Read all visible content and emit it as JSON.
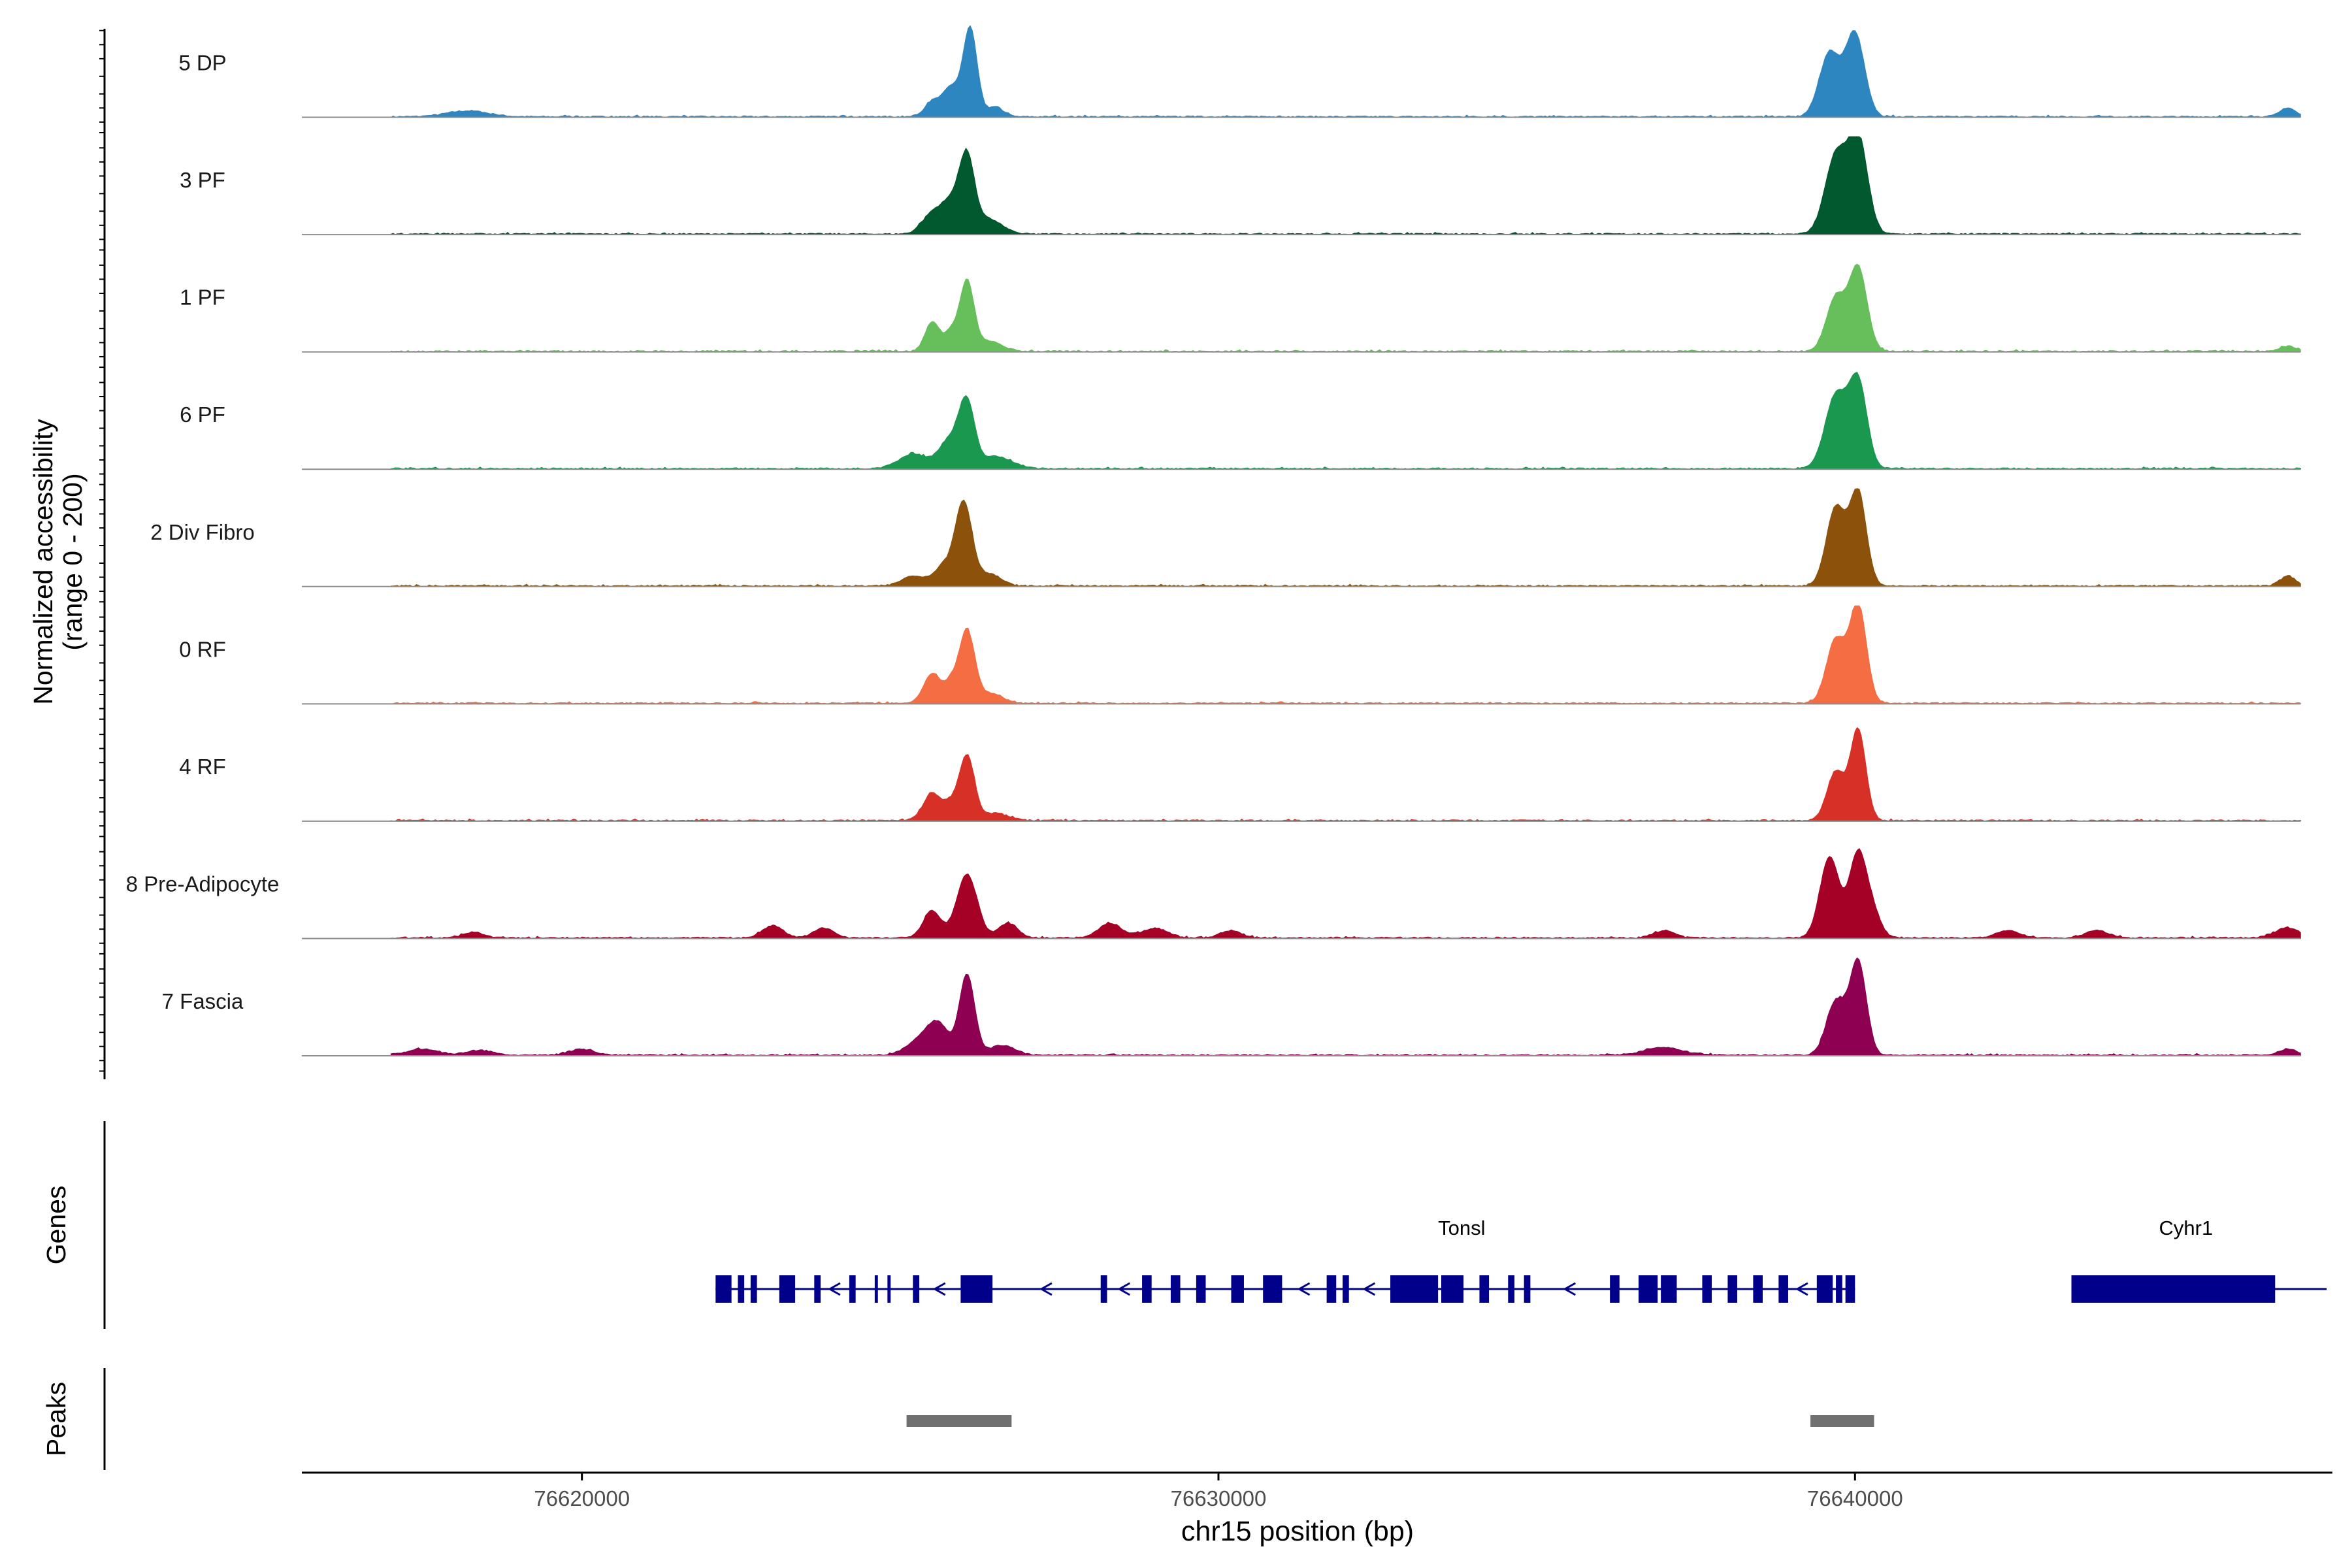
{
  "chart_data": {
    "type": "area",
    "title": "",
    "region": {
      "chrom": "chr15",
      "start": 76615600,
      "end": 76647500
    },
    "xlabel": "chr15 position (bp)",
    "ylabel": "Normalized accessibility",
    "ylabel_sub": "(range 0 - 200)",
    "ylim": [
      0,
      200
    ],
    "xticks": [
      {
        "value": 76620000,
        "label": "76620000"
      },
      {
        "value": 76630000,
        "label": "76630000"
      },
      {
        "value": 76640000,
        "label": "76640000"
      }
    ],
    "series": [
      {
        "name": "5 DP",
        "color": "#2e86c1",
        "peaks": [
          [
            76618200,
            12,
            320
          ],
          [
            76625500,
            30,
            120
          ],
          [
            76625800,
            60,
            130
          ],
          [
            76626100,
            180,
            110
          ],
          [
            76626500,
            20,
            120
          ],
          [
            76639600,
            130,
            160
          ],
          [
            76640000,
            170,
            150
          ],
          [
            76646800,
            18,
            120
          ]
        ]
      },
      {
        "name": "3 PF",
        "color": "#00592f",
        "peaks": [
          [
            76625500,
            40,
            160
          ],
          [
            76625800,
            60,
            150
          ],
          [
            76626050,
            150,
            120
          ],
          [
            76626400,
            30,
            200
          ],
          [
            76639700,
            160,
            170
          ],
          [
            76640050,
            195,
            150
          ]
        ]
      },
      {
        "name": "1 PF",
        "color": "#66bf5b",
        "peaks": [
          [
            76625500,
            60,
            110
          ],
          [
            76625800,
            40,
            110
          ],
          [
            76626050,
            140,
            110
          ],
          [
            76626400,
            20,
            200
          ],
          [
            76639700,
            110,
            150
          ],
          [
            76640050,
            170,
            140
          ],
          [
            76646800,
            10,
            120
          ]
        ]
      },
      {
        "name": "6 PF",
        "color": "#1a9850",
        "peaks": [
          [
            76625200,
            30,
            220
          ],
          [
            76625800,
            60,
            180
          ],
          [
            76626050,
            120,
            120
          ],
          [
            76626500,
            25,
            250
          ],
          [
            76639700,
            150,
            170
          ],
          [
            76640050,
            175,
            140
          ]
        ]
      },
      {
        "name": "2 Div Fibro",
        "color": "#8c510a",
        "peaks": [
          [
            76625200,
            20,
            180
          ],
          [
            76625700,
            40,
            170
          ],
          [
            76626000,
            165,
            130
          ],
          [
            76626400,
            25,
            180
          ],
          [
            76639700,
            160,
            150
          ],
          [
            76640050,
            190,
            130
          ],
          [
            76646800,
            20,
            120
          ]
        ]
      },
      {
        "name": "0 RF",
        "color": "#f46d43",
        "peaks": [
          [
            76625500,
            60,
            130
          ],
          [
            76625800,
            40,
            110
          ],
          [
            76626050,
            145,
            120
          ],
          [
            76626400,
            20,
            200
          ],
          [
            76639700,
            130,
            150
          ],
          [
            76640050,
            200,
            130
          ]
        ]
      },
      {
        "name": "4 RF",
        "color": "#d73027",
        "peaks": [
          [
            76625500,
            55,
            140
          ],
          [
            76625800,
            30,
            120
          ],
          [
            76626050,
            130,
            120
          ],
          [
            76626500,
            15,
            200
          ],
          [
            76639700,
            100,
            140
          ],
          [
            76640050,
            185,
            120
          ]
        ]
      },
      {
        "name": "8 Pre-Adipocyte",
        "color": "#a50026",
        "peaks": [
          [
            76618300,
            12,
            160
          ],
          [
            76623000,
            25,
            160
          ],
          [
            76623800,
            20,
            160
          ],
          [
            76625500,
            55,
            140
          ],
          [
            76626050,
            130,
            160
          ],
          [
            76626700,
            30,
            150
          ],
          [
            76628300,
            30,
            180
          ],
          [
            76629000,
            20,
            200
          ],
          [
            76630200,
            15,
            160
          ],
          [
            76637000,
            15,
            160
          ],
          [
            76639600,
            165,
            150
          ],
          [
            76640050,
            175,
            140
          ],
          [
            76640300,
            40,
            120
          ],
          [
            76642400,
            15,
            180
          ],
          [
            76643800,
            15,
            180
          ],
          [
            76646800,
            20,
            200
          ]
        ]
      },
      {
        "name": "7 Fascia",
        "color": "#8e0152",
        "peaks": [
          [
            76617500,
            12,
            250
          ],
          [
            76618400,
            10,
            200
          ],
          [
            76620000,
            12,
            200
          ],
          [
            76625300,
            30,
            200
          ],
          [
            76625600,
            60,
            160
          ],
          [
            76626050,
            165,
            120
          ],
          [
            76626600,
            20,
            200
          ],
          [
            76637000,
            15,
            300
          ],
          [
            76639700,
            110,
            150
          ],
          [
            76640050,
            190,
            130
          ],
          [
            76646800,
            12,
            150
          ]
        ]
      }
    ],
    "genes": [
      {
        "name": "Tonsl",
        "start": 76622100,
        "end": 76640000,
        "strand": "-",
        "exons": [
          [
            76622100,
            76622350
          ],
          [
            76622450,
            76622550
          ],
          [
            76622650,
            76622750
          ],
          [
            76623100,
            76623350
          ],
          [
            76623650,
            76623750
          ],
          [
            76624200,
            76624300
          ],
          [
            76624600,
            76624650
          ],
          [
            76624800,
            76624850
          ],
          [
            76625200,
            76625300
          ],
          [
            76625950,
            76626450
          ],
          [
            76628150,
            76628250
          ],
          [
            76628800,
            76628950
          ],
          [
            76629250,
            76629400
          ],
          [
            76629650,
            76629800
          ],
          [
            76630200,
            76630400
          ],
          [
            76630700,
            76631000
          ],
          [
            76631700,
            76631850
          ],
          [
            76631950,
            76632050
          ],
          [
            76632700,
            76633450
          ],
          [
            76633500,
            76633850
          ],
          [
            76634100,
            76634250
          ],
          [
            76634550,
            76634650
          ],
          [
            76634800,
            76634900
          ],
          [
            76636150,
            76636300
          ],
          [
            76636600,
            76636900
          ],
          [
            76636950,
            76637200
          ],
          [
            76637600,
            76637750
          ],
          [
            76638000,
            76638150
          ],
          [
            76638400,
            76638550
          ],
          [
            76638800,
            76638950
          ],
          [
            76639400,
            76639650
          ],
          [
            76639700,
            76639800
          ],
          [
            76639850,
            76640000
          ]
        ]
      },
      {
        "name": "Cyhr1",
        "start": 76643400,
        "end": 76647000,
        "strand": "+",
        "exons": [
          [
            76643400,
            76646600
          ]
        ]
      }
    ],
    "peaks_track": [
      [
        76625100,
        76626750
      ],
      [
        76639300,
        76640300
      ]
    ],
    "track_labels": {
      "genes": "Genes",
      "peaks": "Peaks"
    }
  }
}
